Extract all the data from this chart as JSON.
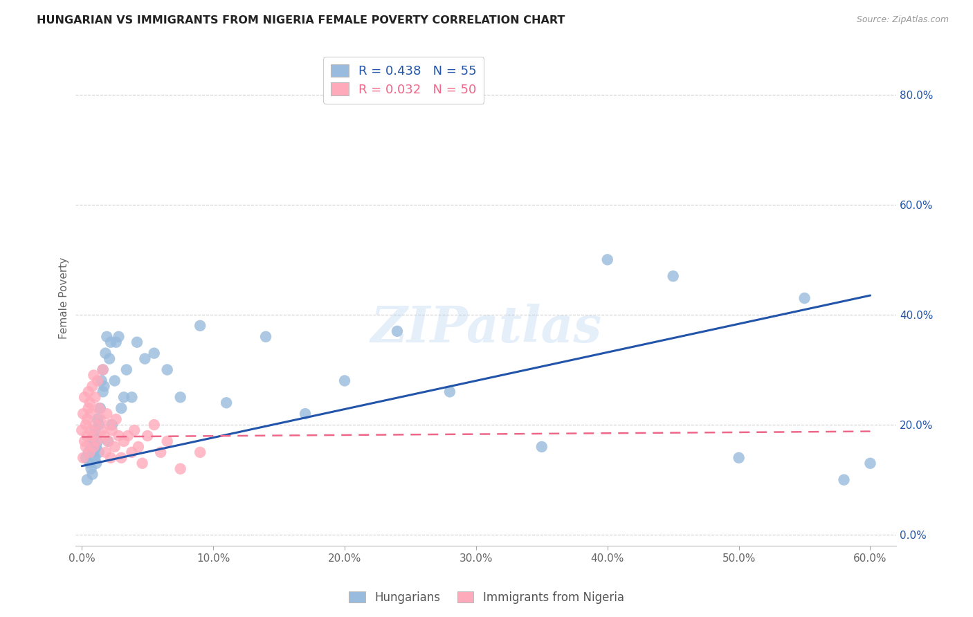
{
  "title": "HUNGARIAN VS IMMIGRANTS FROM NIGERIA FEMALE POVERTY CORRELATION CHART",
  "source": "Source: ZipAtlas.com",
  "xlim": [
    -0.005,
    0.62
  ],
  "ylim": [
    -0.02,
    0.88
  ],
  "xtick_vals": [
    0.0,
    0.1,
    0.2,
    0.3,
    0.4,
    0.5,
    0.6
  ],
  "xtick_labels": [
    "0.0%",
    "10.0%",
    "20.0%",
    "30.0%",
    "40.0%",
    "50.0%",
    "60.0%"
  ],
  "ytick_vals": [
    0.0,
    0.2,
    0.4,
    0.6,
    0.8
  ],
  "ytick_labels": [
    "0.0%",
    "20.0%",
    "40.0%",
    "60.0%",
    "80.0%"
  ],
  "legend_labels": [
    "Hungarians",
    "Immigrants from Nigeria"
  ],
  "r_hungarian": "0.438",
  "n_hungarian": "55",
  "r_nigeria": "0.032",
  "n_nigeria": "50",
  "blue_color": "#99BBDD",
  "pink_color": "#FFAABB",
  "blue_line_color": "#2255AA",
  "pink_line_color": "#EE6688",
  "grid_color": "#CCCCCC",
  "background_color": "#FFFFFF",
  "watermark": "ZIPatlas",
  "blue_line_x0": 0.0,
  "blue_line_y0": 0.125,
  "blue_line_x1": 0.6,
  "blue_line_y1": 0.435,
  "pink_line_x0": 0.0,
  "pink_line_y0": 0.178,
  "pink_line_x1": 0.6,
  "pink_line_y1": 0.188,
  "hungarian_x": [
    0.003,
    0.004,
    0.005,
    0.006,
    0.007,
    0.007,
    0.008,
    0.008,
    0.009,
    0.009,
    0.01,
    0.01,
    0.011,
    0.011,
    0.012,
    0.012,
    0.013,
    0.013,
    0.014,
    0.015,
    0.016,
    0.016,
    0.017,
    0.018,
    0.019,
    0.02,
    0.021,
    0.022,
    0.023,
    0.025,
    0.026,
    0.028,
    0.03,
    0.032,
    0.034,
    0.038,
    0.042,
    0.048,
    0.055,
    0.065,
    0.075,
    0.09,
    0.11,
    0.14,
    0.17,
    0.2,
    0.24,
    0.28,
    0.35,
    0.4,
    0.45,
    0.5,
    0.55,
    0.58,
    0.6
  ],
  "hungarian_y": [
    0.14,
    0.1,
    0.15,
    0.13,
    0.16,
    0.12,
    0.17,
    0.11,
    0.15,
    0.18,
    0.14,
    0.19,
    0.16,
    0.13,
    0.21,
    0.17,
    0.2,
    0.15,
    0.23,
    0.28,
    0.26,
    0.3,
    0.27,
    0.33,
    0.36,
    0.17,
    0.32,
    0.35,
    0.2,
    0.28,
    0.35,
    0.36,
    0.23,
    0.25,
    0.3,
    0.25,
    0.35,
    0.32,
    0.33,
    0.3,
    0.25,
    0.38,
    0.24,
    0.36,
    0.22,
    0.28,
    0.37,
    0.26,
    0.16,
    0.5,
    0.47,
    0.14,
    0.43,
    0.1,
    0.13
  ],
  "nigeria_x": [
    0.0,
    0.001,
    0.001,
    0.002,
    0.002,
    0.003,
    0.003,
    0.004,
    0.004,
    0.005,
    0.005,
    0.006,
    0.006,
    0.007,
    0.007,
    0.008,
    0.008,
    0.009,
    0.009,
    0.01,
    0.01,
    0.011,
    0.012,
    0.013,
    0.014,
    0.015,
    0.016,
    0.017,
    0.018,
    0.019,
    0.02,
    0.021,
    0.022,
    0.023,
    0.025,
    0.026,
    0.028,
    0.03,
    0.032,
    0.035,
    0.038,
    0.04,
    0.043,
    0.046,
    0.05,
    0.055,
    0.06,
    0.065,
    0.075,
    0.09
  ],
  "nigeria_y": [
    0.19,
    0.14,
    0.22,
    0.17,
    0.25,
    0.16,
    0.2,
    0.21,
    0.18,
    0.23,
    0.26,
    0.15,
    0.24,
    0.22,
    0.19,
    0.27,
    0.18,
    0.16,
    0.29,
    0.2,
    0.25,
    0.17,
    0.28,
    0.23,
    0.21,
    0.19,
    0.3,
    0.18,
    0.15,
    0.22,
    0.17,
    0.2,
    0.14,
    0.19,
    0.16,
    0.21,
    0.18,
    0.14,
    0.17,
    0.18,
    0.15,
    0.19,
    0.16,
    0.13,
    0.18,
    0.2,
    0.15,
    0.17,
    0.12,
    0.15
  ]
}
